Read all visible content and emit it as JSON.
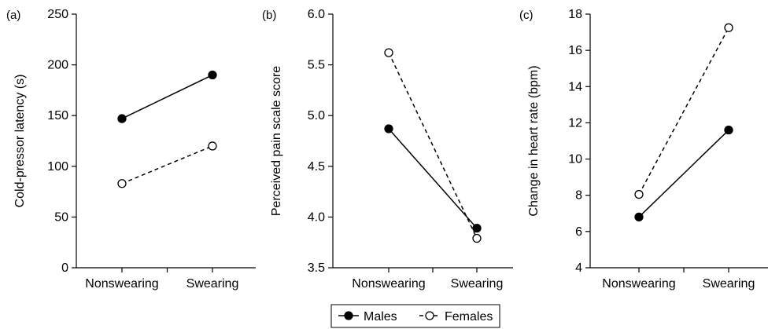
{
  "chart_data": [
    {
      "type": "line",
      "panel_label": "(a)",
      "categories": [
        "Nonswearing",
        "Swearing"
      ],
      "ylabel": "Cold-pressor latency (s)",
      "ylim": [
        0,
        250
      ],
      "yticks": [
        0,
        50,
        100,
        150,
        200,
        250
      ],
      "series": [
        {
          "name": "Males",
          "values": [
            147,
            190
          ]
        },
        {
          "name": "Females",
          "values": [
            83,
            120
          ]
        }
      ]
    },
    {
      "type": "line",
      "panel_label": "(b)",
      "categories": [
        "Nonswearing",
        "Swearing"
      ],
      "ylabel": "Perceived pain scale score",
      "ylim": [
        3.5,
        6.0
      ],
      "yticks": [
        "3.5",
        "4.0",
        "4.5",
        "5.0",
        "5.5",
        "6.0"
      ],
      "series": [
        {
          "name": "Males",
          "values": [
            4.87,
            3.89
          ]
        },
        {
          "name": "Females",
          "values": [
            5.62,
            3.79
          ]
        }
      ]
    },
    {
      "type": "line",
      "panel_label": "(c)",
      "categories": [
        "Nonswearing",
        "Swearing"
      ],
      "ylabel": "Change in heart rate (bpm)",
      "ylim": [
        4,
        18
      ],
      "yticks": [
        4,
        6,
        8,
        10,
        12,
        14,
        16,
        18
      ],
      "series": [
        {
          "name": "Males",
          "values": [
            6.8,
            11.6
          ]
        },
        {
          "name": "Females",
          "values": [
            8.05,
            17.25
          ]
        }
      ]
    }
  ],
  "legend": {
    "position": "bottom-center",
    "entries": [
      {
        "name": "Males",
        "marker": "filled-circle",
        "line": "solid"
      },
      {
        "name": "Females",
        "marker": "open-circle",
        "line": "dashed"
      }
    ]
  },
  "colors": {
    "ink": "#000000",
    "background": "#ffffff"
  }
}
